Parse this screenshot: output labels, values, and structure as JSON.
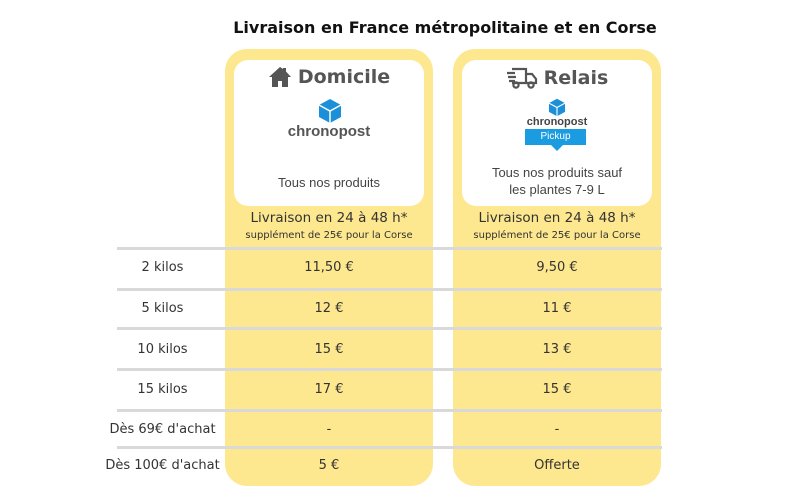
{
  "title": "Livraison en France métropolitaine et en Corse",
  "accent": "#fde78f",
  "columns": [
    {
      "name": "Domicile",
      "icon": "house-icon",
      "logo": "chronopost",
      "description": [
        "Tous nos produits"
      ],
      "delivery": "Livraison en 24 à 48 h*",
      "supplement": "supplément de 25€  pour la Corse"
    },
    {
      "name": "Relais",
      "icon": "truck-icon",
      "logo": "chronopost",
      "logo_sub": "Pickup",
      "description": [
        "Tous nos produits sauf",
        "les plantes 7-9 L"
      ],
      "delivery": "Livraison en 24 à 48 h*",
      "supplement": "supplément de 25€ pour la Corse"
    }
  ],
  "rows": [
    {
      "label": "2 kilos",
      "domicile": "11,50 €",
      "relais": "9,50 €"
    },
    {
      "label": "5 kilos",
      "domicile": "12 €",
      "relais": "11 €"
    },
    {
      "label": "10 kilos",
      "domicile": "15 €",
      "relais": "13 €"
    },
    {
      "label": "15 kilos",
      "domicile": "17 €",
      "relais": "15 €"
    },
    {
      "label": "Dès 69€ d'achat",
      "domicile": "-",
      "relais": "-"
    },
    {
      "label": "Dès 100€ d'achat",
      "domicile": "5 €",
      "relais": "Offerte"
    }
  ]
}
